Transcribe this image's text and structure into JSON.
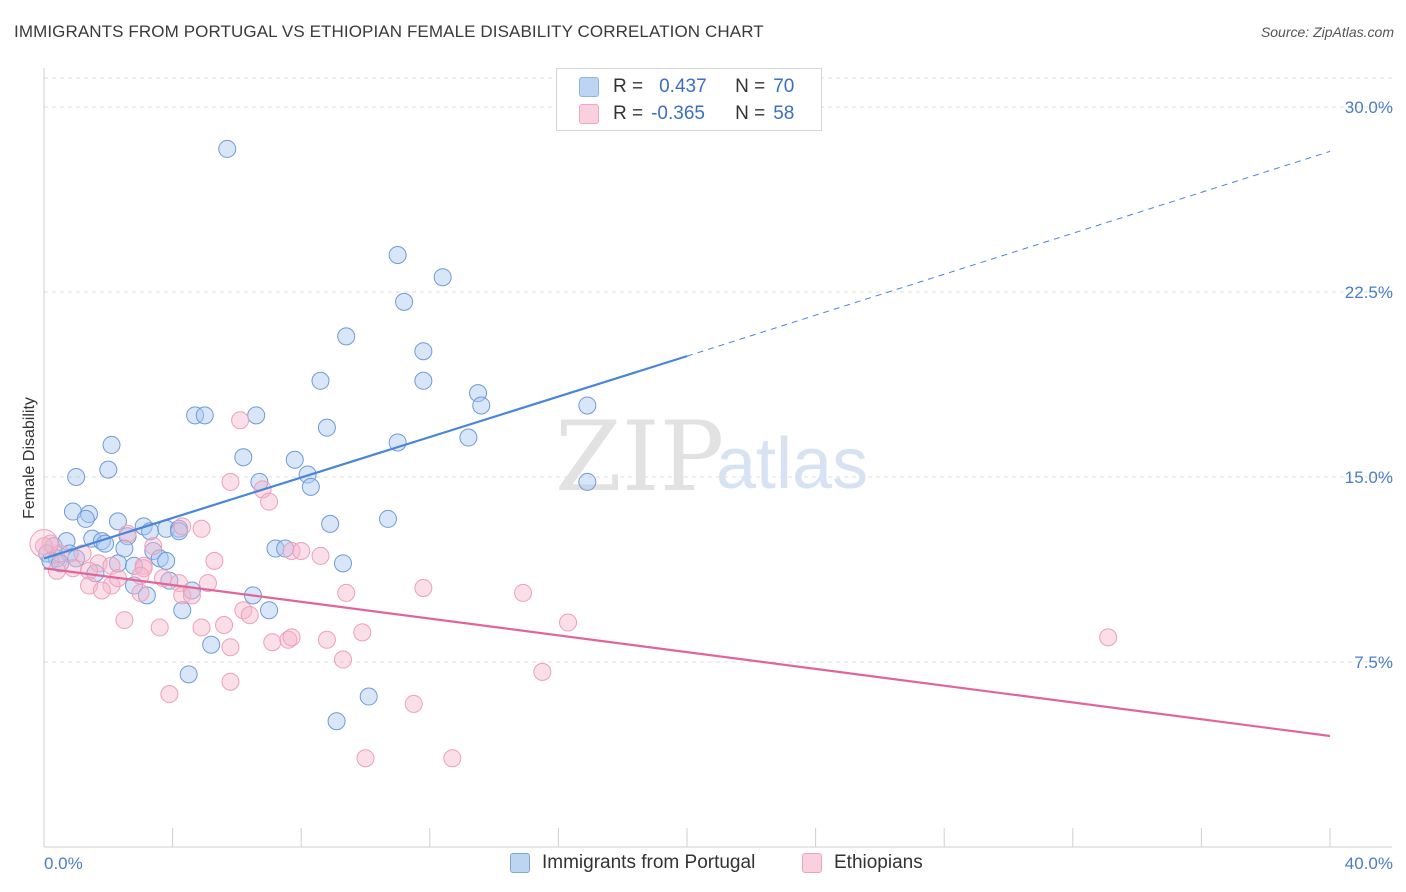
{
  "title": "IMMIGRANTS FROM PORTUGAL VS ETHIOPIAN FEMALE DISABILITY CORRELATION CHART",
  "source": "Source: ZipAtlas.com",
  "watermark": {
    "zip": "ZIP",
    "atlas": "atlas"
  },
  "legend": {
    "r_label": "R =",
    "n_label": "N =",
    "rows": [
      {
        "r": "0.437",
        "n": "70",
        "color": "#8fb5e8"
      },
      {
        "r": "-0.365",
        "n": "58",
        "color": "#f2a6c0"
      }
    ]
  },
  "chart_data": {
    "type": "scatter",
    "title": "IMMIGRANTS FROM PORTUGAL VS ETHIOPIAN FEMALE DISABILITY CORRELATION CHART",
    "xlabel": "",
    "ylabel": "Female Disability",
    "xlim": [
      0,
      40
    ],
    "ylim": [
      0,
      31.5
    ],
    "x_tick_labels": [
      "0.0%",
      "40.0%"
    ],
    "y_ticks": [
      7.5,
      15.0,
      22.5,
      30.0
    ],
    "y_tick_labels": [
      "7.5%",
      "15.0%",
      "22.5%",
      "30.0%"
    ],
    "grid": true,
    "legend_position": "top-center",
    "series": [
      {
        "name": "Immigrants from Portugal",
        "color": "#4a86d8",
        "fill": "#a9c8f0",
        "trend": {
          "x0": 0,
          "y0": 11.7,
          "x1": 20,
          "y1": 19.9,
          "dashed_to_x": 40,
          "dashed_to_y": 28.2
        },
        "points": [
          [
            5.7,
            28.3
          ],
          [
            11.0,
            24.0
          ],
          [
            12.4,
            23.1
          ],
          [
            11.2,
            22.1
          ],
          [
            9.4,
            20.7
          ],
          [
            11.8,
            20.1
          ],
          [
            8.6,
            18.9
          ],
          [
            11.8,
            18.9
          ],
          [
            13.5,
            18.4
          ],
          [
            13.6,
            17.9
          ],
          [
            16.9,
            17.9
          ],
          [
            4.7,
            17.5
          ],
          [
            5.0,
            17.5
          ],
          [
            6.6,
            17.5
          ],
          [
            8.8,
            17.0
          ],
          [
            11.0,
            16.4
          ],
          [
            13.2,
            16.6
          ],
          [
            2.1,
            16.3
          ],
          [
            6.2,
            15.8
          ],
          [
            7.8,
            15.7
          ],
          [
            2.0,
            15.3
          ],
          [
            1.0,
            15.0
          ],
          [
            8.2,
            15.1
          ],
          [
            6.7,
            14.8
          ],
          [
            8.3,
            14.6
          ],
          [
            16.9,
            14.8
          ],
          [
            0.9,
            13.6
          ],
          [
            1.4,
            13.5
          ],
          [
            2.3,
            13.2
          ],
          [
            3.1,
            13.0
          ],
          [
            3.3,
            12.8
          ],
          [
            3.8,
            12.9
          ],
          [
            4.2,
            12.9
          ],
          [
            4.2,
            12.8
          ],
          [
            1.3,
            13.3
          ],
          [
            8.9,
            13.1
          ],
          [
            10.7,
            13.3
          ],
          [
            0.3,
            12.2
          ],
          [
            0.7,
            12.4
          ],
          [
            1.5,
            12.5
          ],
          [
            1.8,
            12.4
          ],
          [
            2.6,
            12.6
          ],
          [
            1.9,
            12.3
          ],
          [
            2.5,
            12.1
          ],
          [
            3.4,
            12.0
          ],
          [
            7.2,
            12.1
          ],
          [
            7.5,
            12.1
          ],
          [
            0.1,
            11.9
          ],
          [
            0.4,
            11.7
          ],
          [
            0.8,
            11.9
          ],
          [
            1.0,
            11.7
          ],
          [
            3.6,
            11.7
          ],
          [
            3.8,
            11.6
          ],
          [
            9.3,
            11.5
          ],
          [
            2.3,
            11.5
          ],
          [
            2.8,
            11.4
          ],
          [
            0.2,
            11.6
          ],
          [
            0.5,
            11.5
          ],
          [
            3.9,
            10.8
          ],
          [
            2.8,
            10.6
          ],
          [
            3.2,
            10.2
          ],
          [
            4.6,
            10.4
          ],
          [
            6.5,
            10.2
          ],
          [
            4.3,
            9.6
          ],
          [
            7.0,
            9.6
          ],
          [
            5.2,
            8.2
          ],
          [
            4.5,
            7.0
          ],
          [
            10.1,
            6.1
          ],
          [
            9.1,
            5.1
          ],
          [
            1.6,
            11.1
          ]
        ]
      },
      {
        "name": "Ethiopians",
        "color": "#e0669a",
        "fill": "#f5b6cb",
        "trend": {
          "x0": 0,
          "y0": 11.3,
          "x1": 40,
          "y1": 4.5
        },
        "points": [
          [
            6.1,
            17.3
          ],
          [
            5.8,
            14.8
          ],
          [
            6.8,
            14.5
          ],
          [
            7.0,
            14.0
          ],
          [
            4.3,
            13.0
          ],
          [
            4.9,
            12.9
          ],
          [
            2.6,
            12.7
          ],
          [
            3.4,
            12.2
          ],
          [
            7.7,
            12.0
          ],
          [
            8.0,
            12.0
          ],
          [
            8.6,
            11.8
          ],
          [
            5.3,
            11.6
          ],
          [
            0.2,
            12.3
          ],
          [
            0.5,
            11.9
          ],
          [
            1.2,
            11.9
          ],
          [
            1.7,
            11.5
          ],
          [
            0.9,
            11.3
          ],
          [
            0.4,
            11.2
          ],
          [
            2.1,
            11.4
          ],
          [
            3.1,
            11.4
          ],
          [
            3.1,
            11.3
          ],
          [
            1.4,
            11.2
          ],
          [
            3.0,
            11.0
          ],
          [
            3.7,
            10.9
          ],
          [
            4.2,
            10.7
          ],
          [
            5.1,
            10.7
          ],
          [
            1.4,
            10.6
          ],
          [
            2.1,
            10.6
          ],
          [
            2.3,
            10.9
          ],
          [
            1.8,
            10.4
          ],
          [
            3.0,
            10.3
          ],
          [
            4.3,
            10.2
          ],
          [
            4.6,
            10.2
          ],
          [
            9.4,
            10.3
          ],
          [
            11.8,
            10.5
          ],
          [
            14.9,
            10.3
          ],
          [
            6.2,
            9.6
          ],
          [
            6.4,
            9.4
          ],
          [
            2.5,
            9.2
          ],
          [
            5.6,
            9.0
          ],
          [
            3.6,
            8.9
          ],
          [
            4.9,
            8.9
          ],
          [
            16.3,
            9.1
          ],
          [
            7.1,
            8.3
          ],
          [
            7.6,
            8.4
          ],
          [
            7.7,
            8.5
          ],
          [
            8.8,
            8.4
          ],
          [
            9.9,
            8.7
          ],
          [
            33.1,
            8.5
          ],
          [
            5.8,
            8.1
          ],
          [
            9.3,
            7.6
          ],
          [
            15.5,
            7.1
          ],
          [
            5.8,
            6.7
          ],
          [
            3.9,
            6.2
          ],
          [
            11.5,
            5.8
          ],
          [
            10.0,
            3.6
          ],
          [
            12.7,
            3.6
          ],
          [
            0.0,
            12.2
          ]
        ]
      }
    ]
  },
  "bottom_legend": [
    {
      "label": "Immigrants from Portugal",
      "color": "#a9c8f0",
      "border": "#7ea7df"
    },
    {
      "label": "Ethiopians",
      "color": "#f9c7d7",
      "border": "#eba3bd"
    }
  ]
}
